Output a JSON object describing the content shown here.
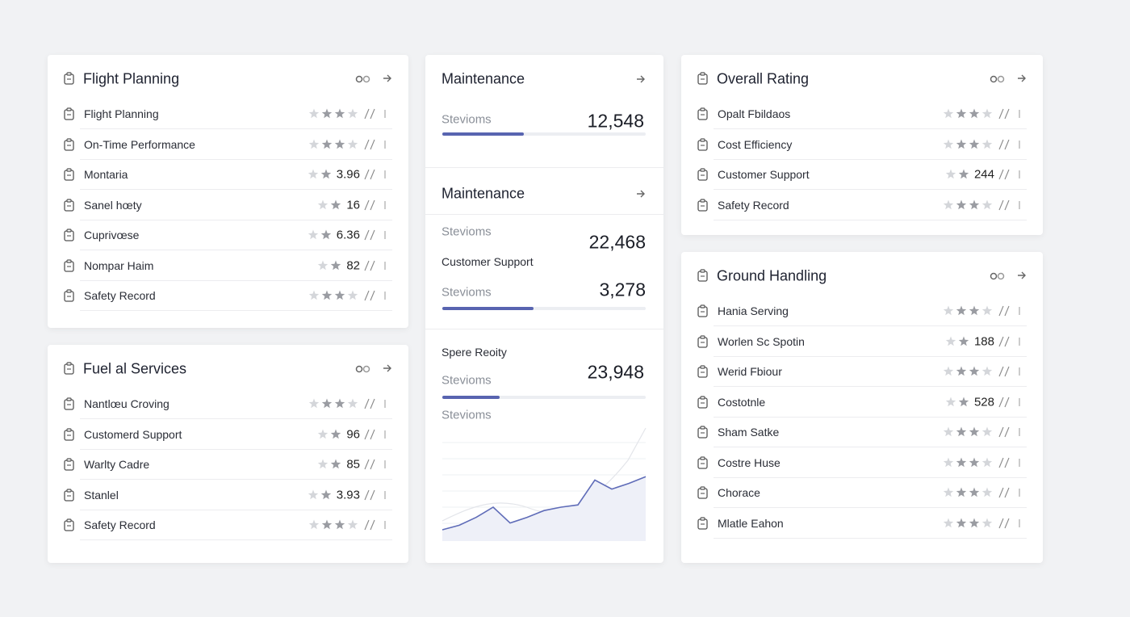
{
  "cards": [
    {
      "title": "Flight Planning",
      "rows": [
        {
          "label": "Flight Planning"
        },
        {
          "label": "On-Time Performance"
        },
        {
          "label": "Montaria",
          "value": "3.96"
        },
        {
          "label": "Sanel hœty",
          "value": "16"
        },
        {
          "label": "Cuprivœse",
          "value": "6.36"
        },
        {
          "label": "Nompar Haim",
          "value": "82"
        },
        {
          "label": "Safety Record"
        }
      ]
    },
    {
      "title": "Fuel al Services",
      "rows": [
        {
          "label": "Nantlœu Croving"
        },
        {
          "label": "Customerd Support",
          "value": "96"
        },
        {
          "label": "Warlty Cadre",
          "value": "85"
        },
        {
          "label": "Stanlel",
          "value": "3.93"
        },
        {
          "label": "Safety Record"
        }
      ]
    },
    {
      "title": "Overall Rating",
      "rows": [
        {
          "label": "Opalt Fbildaos"
        },
        {
          "label": "Cost Efficiency"
        },
        {
          "label": "Customer Support",
          "value": "244"
        },
        {
          "label": "Safety Record"
        }
      ]
    },
    {
      "title": "Ground Handling",
      "rows": [
        {
          "label": "Hania Serving"
        },
        {
          "label": "Worlen Sc Spotin",
          "value": "188"
        },
        {
          "label": "Werid Fbiour"
        },
        {
          "label": "Costotnle",
          "value": "528"
        },
        {
          "label": "Sham Satke"
        },
        {
          "label": "Costre Huse"
        },
        {
          "label": "Chorace"
        },
        {
          "label": "Mlatle Eahon"
        }
      ]
    }
  ],
  "maintenance": {
    "section1": {
      "title": "Maintenance",
      "label": "Stevioms",
      "value": "12,548",
      "progress": 40
    },
    "section2": {
      "title": "Maintenance",
      "label": "Stevioms",
      "value": "22,468",
      "sublabel": "Customer Support",
      "label2": "Stevioms",
      "value2": "3,278",
      "progress": 45
    },
    "section3": {
      "title": "Spere Reoity",
      "label": "Stevioms",
      "value": "23,948",
      "progress": 28,
      "label2": "Stevioms",
      "sparkline": [
        10,
        14,
        21,
        30,
        16,
        21,
        27,
        30,
        32,
        54,
        46,
        51,
        57
      ]
    }
  }
}
